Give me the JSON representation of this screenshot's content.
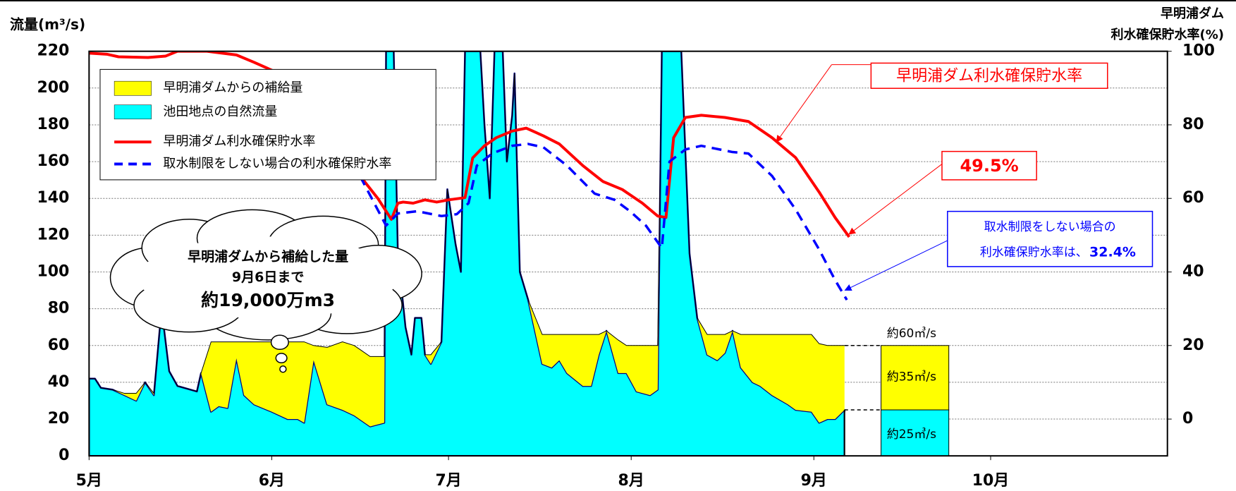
{
  "chart_data": {
    "type": "combo",
    "ylabel": "流量(m³/s)",
    "y2label": [
      "早明浦ダム",
      "利水確保貯水率(%)"
    ],
    "xlim": [
      0,
      183
    ],
    "xticks": [
      {
        "value": 0,
        "label": "5月"
      },
      {
        "value": 31,
        "label": "6月"
      },
      {
        "value": 61,
        "label": "7月"
      },
      {
        "value": 92,
        "label": "8月"
      },
      {
        "value": 123,
        "label": "9月"
      },
      {
        "value": 153,
        "label": "10月"
      }
    ],
    "ylim": [
      0,
      220
    ],
    "yticks": [
      0,
      20,
      40,
      60,
      80,
      100,
      120,
      140,
      160,
      180,
      200,
      220
    ],
    "y2lim": [
      -10,
      100
    ],
    "y2ticks": [
      0,
      20,
      40,
      60,
      80,
      100
    ],
    "grid": true,
    "legend": "top-left",
    "series": [
      {
        "name": "早明浦ダムからの補給量",
        "kind": "stacked_area",
        "stack_on": 1,
        "color": "#ffff00",
        "x": [
          0,
          1,
          2,
          4,
          6,
          8,
          9.5,
          11,
          12.3,
          13.6,
          15,
          18.3,
          19,
          20.7,
          22,
          23.5,
          25,
          26.3,
          28,
          31,
          33.7,
          35.4,
          36.5,
          38.1,
          40.4,
          43,
          45,
          47.7,
          50.1,
          50.4,
          51.7,
          52.4,
          53.7,
          54.7,
          55.3,
          56.4,
          57,
          58,
          59.8,
          60.8,
          62.2,
          63.1,
          63.8,
          66.4,
          67.1,
          68,
          68.8,
          70.2,
          70.9,
          71.8,
          72.2,
          73.1,
          74.5,
          76.9,
          78.5,
          79.8,
          81.1,
          83.8,
          85.2,
          86.5,
          87.8,
          89.8,
          91.2,
          92.9,
          95.2,
          96.5,
          97.2,
          100.5,
          101.9,
          103.2,
          104.9,
          106.6,
          107.9,
          109.2,
          110.6,
          112.6,
          113.9,
          115.9,
          118.6,
          119.9,
          122.6,
          123.9,
          125.3,
          126.6,
          128.2
        ],
        "values": [
          0,
          0,
          0,
          0,
          1,
          4,
          0,
          1,
          0,
          0,
          0,
          0,
          0,
          38,
          35,
          36,
          9,
          29,
          34,
          38,
          42,
          42,
          44,
          8,
          31,
          37,
          38,
          38,
          36,
          0,
          0,
          0,
          0,
          0,
          0,
          0,
          0,
          5,
          0,
          0,
          0,
          0,
          0,
          0,
          0,
          0,
          0,
          0,
          0,
          0,
          0,
          0,
          0,
          16,
          18,
          14,
          21,
          28,
          28,
          11,
          0,
          18,
          15,
          25,
          27,
          24,
          0,
          0,
          0,
          0,
          11,
          14,
          10,
          0,
          18,
          26,
          28,
          33,
          38,
          41,
          42,
          43,
          40,
          40,
          35
        ]
      },
      {
        "name": "池田地点の自然流量",
        "kind": "area",
        "color": "#00ffff",
        "x": [
          0,
          1,
          2,
          4,
          6,
          8,
          9.5,
          11,
          12.3,
          13.6,
          15,
          18.3,
          19,
          20.7,
          22,
          23.5,
          25,
          26.3,
          28,
          31,
          33.7,
          35.4,
          36.5,
          38.1,
          40.4,
          43,
          45,
          47.7,
          50.1,
          50.4,
          51.7,
          52.4,
          53.7,
          54.7,
          55.3,
          56.4,
          57,
          58,
          59.8,
          60.8,
          62.2,
          63.1,
          63.8,
          66.4,
          67.1,
          68,
          68.8,
          70.2,
          70.9,
          71.8,
          72.2,
          73.1,
          74.5,
          76.9,
          78.5,
          79.8,
          81.1,
          83.8,
          85.2,
          86.5,
          87.8,
          89.8,
          91.2,
          92.9,
          95.2,
          96.5,
          97.2,
          100.5,
          101.9,
          103.2,
          104.9,
          106.6,
          107.9,
          109.2,
          110.6,
          112.6,
          113.9,
          115.9,
          118.6,
          119.9,
          122.6,
          123.9,
          125.3,
          126.6,
          128.2
        ],
        "values": [
          42,
          42,
          37,
          36,
          33,
          30,
          40,
          33,
          80,
          46,
          38,
          35,
          45,
          24,
          27,
          26,
          53,
          33,
          28,
          24,
          20,
          20,
          18,
          52,
          28,
          25,
          22,
          16,
          18,
          220,
          220,
          110,
          70,
          55,
          75,
          75,
          55,
          50,
          62,
          145,
          115,
          100,
          220,
          220,
          180,
          140,
          220,
          220,
          160,
          185,
          208,
          100,
          85,
          50,
          48,
          52,
          45,
          38,
          38,
          55,
          68,
          45,
          45,
          35,
          33,
          36,
          220,
          220,
          110,
          75,
          55,
          52,
          56,
          68,
          48,
          40,
          38,
          33,
          28,
          25,
          24,
          18,
          20,
          20,
          25
        ]
      },
      {
        "name": "早明浦ダム利水確保貯水率",
        "kind": "line",
        "axis": "y2",
        "color": "#ff0000",
        "x": [
          0,
          3,
          5,
          10,
          13,
          15,
          20,
          25,
          28,
          35,
          40,
          45.7,
          49,
          51.3,
          52.4,
          53.3,
          55,
          57,
          59,
          61,
          63.8,
          65.1,
          67.1,
          69.1,
          71.8,
          74.2,
          77.1,
          79.8,
          83.8,
          87.2,
          90.5,
          93.9,
          96.5,
          97.9,
          99.2,
          101.2,
          103.9,
          107.9,
          111.9,
          115.9,
          119.9,
          123.9,
          126.6,
          129
        ],
        "values": [
          99.5,
          99.2,
          98.5,
          98.3,
          98.7,
          100,
          100,
          99,
          97,
          92,
          83,
          66.7,
          60,
          54.3,
          58.7,
          59,
          58.7,
          59.6,
          59,
          59.6,
          60.2,
          71,
          74.3,
          76.5,
          78.3,
          79.1,
          77,
          74.8,
          68.9,
          64.6,
          62.4,
          58.7,
          55.2,
          54.8,
          76.5,
          82,
          82.6,
          82,
          80.9,
          76.5,
          71.1,
          61.7,
          54.8,
          49.5
        ]
      },
      {
        "name": "取水制限をしない場合の利水確保貯水率",
        "kind": "line",
        "axis": "y2",
        "dashed": true,
        "color": "#0000ff",
        "x": [
          46,
          50.4,
          52.4,
          55.7,
          59.8,
          62.4,
          64.4,
          65.8,
          68.4,
          71.8,
          74.5,
          77.1,
          81.1,
          85.8,
          89.2,
          91.8,
          94.5,
          97.2,
          98.5,
          101.2,
          103.9,
          109.2,
          111.9,
          115.9,
          119.9,
          123.9,
          126.6,
          128.6
        ],
        "values": [
          66,
          52.6,
          55.9,
          56.5,
          55.2,
          55.7,
          58.7,
          68.9,
          72.2,
          74.3,
          74.8,
          73.9,
          68.9,
          61.3,
          59.6,
          56.5,
          52.6,
          46.5,
          70,
          73.3,
          74.3,
          72.6,
          72.2,
          66.1,
          57,
          46.1,
          37.8,
          32.4
        ]
      }
    ],
    "forecast": {
      "x": [
        134.4,
        145.9
      ],
      "natural": 25,
      "supply": 35,
      "labels": [
        "約60㎥/s",
        "約35㎥/s",
        "約25㎥/s"
      ]
    },
    "annotations": {
      "red_label": "早明浦ダム利水確保貯水率",
      "red_value": "49.5%",
      "blue_note": [
        "取水制限をしない場合の",
        "利水確保貯水率は、",
        "32.4%"
      ],
      "cloud": [
        "早明浦ダムから補給した量",
        "9月6日まで",
        "約19,000万m3"
      ]
    }
  }
}
